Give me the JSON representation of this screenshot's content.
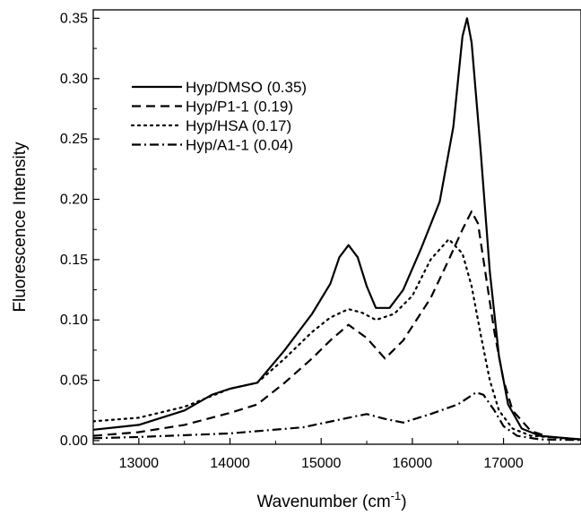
{
  "chart_data": {
    "type": "line",
    "title": "",
    "xlabel": "Wavenumber (cm",
    "xlabel_sup": "-1",
    "xlabel_close": ")",
    "ylabel": "Fluorescence Intensity",
    "xlim": [
      12500,
      17850
    ],
    "ylim": [
      -0.003,
      0.357
    ],
    "x_ticks": [
      13000,
      14000,
      15000,
      16000,
      17000
    ],
    "x_tick_labels": [
      "13000",
      "14000",
      "15000",
      "16000",
      "17000"
    ],
    "y_ticks": [
      0.0,
      0.05,
      0.1,
      0.15,
      0.2,
      0.25,
      0.3,
      0.35
    ],
    "y_tick_labels": [
      "0.00",
      "0.05",
      "0.10",
      "0.15",
      "0.20",
      "0.25",
      "0.30",
      "0.35"
    ],
    "grid": false,
    "legend_position": "upper-left",
    "series": [
      {
        "name": "Hyp/DMSO (0.35)",
        "style": "solid",
        "points": [
          [
            12500,
            0.009
          ],
          [
            13000,
            0.013
          ],
          [
            13500,
            0.025
          ],
          [
            13800,
            0.038
          ],
          [
            14000,
            0.043
          ],
          [
            14300,
            0.048
          ],
          [
            14600,
            0.075
          ],
          [
            14900,
            0.105
          ],
          [
            15100,
            0.13
          ],
          [
            15200,
            0.152
          ],
          [
            15300,
            0.162
          ],
          [
            15400,
            0.152
          ],
          [
            15500,
            0.128
          ],
          [
            15600,
            0.11
          ],
          [
            15750,
            0.11
          ],
          [
            15900,
            0.125
          ],
          [
            16100,
            0.16
          ],
          [
            16300,
            0.198
          ],
          [
            16450,
            0.26
          ],
          [
            16550,
            0.335
          ],
          [
            16600,
            0.35
          ],
          [
            16650,
            0.33
          ],
          [
            16750,
            0.24
          ],
          [
            16850,
            0.14
          ],
          [
            16950,
            0.07
          ],
          [
            17050,
            0.03
          ],
          [
            17200,
            0.01
          ],
          [
            17400,
            0.004
          ],
          [
            17850,
            0.001
          ]
        ]
      },
      {
        "name": "Hyp/P1-1 (0.19)",
        "style": "dashed",
        "points": [
          [
            12500,
            0.004
          ],
          [
            13000,
            0.007
          ],
          [
            13500,
            0.013
          ],
          [
            14000,
            0.023
          ],
          [
            14300,
            0.03
          ],
          [
            14600,
            0.048
          ],
          [
            14900,
            0.068
          ],
          [
            15100,
            0.083
          ],
          [
            15300,
            0.096
          ],
          [
            15500,
            0.085
          ],
          [
            15700,
            0.068
          ],
          [
            15900,
            0.083
          ],
          [
            16200,
            0.118
          ],
          [
            16400,
            0.15
          ],
          [
            16550,
            0.175
          ],
          [
            16650,
            0.19
          ],
          [
            16720,
            0.18
          ],
          [
            16800,
            0.14
          ],
          [
            16900,
            0.09
          ],
          [
            17000,
            0.05
          ],
          [
            17100,
            0.025
          ],
          [
            17300,
            0.008
          ],
          [
            17500,
            0.003
          ],
          [
            17850,
            0.001
          ]
        ]
      },
      {
        "name": "Hyp/HSA  (0.17)",
        "style": "dotted",
        "points": [
          [
            12500,
            0.016
          ],
          [
            13000,
            0.019
          ],
          [
            13500,
            0.028
          ],
          [
            13800,
            0.037
          ],
          [
            14000,
            0.043
          ],
          [
            14300,
            0.048
          ],
          [
            14600,
            0.068
          ],
          [
            14900,
            0.09
          ],
          [
            15100,
            0.102
          ],
          [
            15300,
            0.109
          ],
          [
            15450,
            0.106
          ],
          [
            15600,
            0.1
          ],
          [
            15800,
            0.105
          ],
          [
            16000,
            0.12
          ],
          [
            16200,
            0.15
          ],
          [
            16400,
            0.167
          ],
          [
            16550,
            0.155
          ],
          [
            16650,
            0.128
          ],
          [
            16750,
            0.088
          ],
          [
            16850,
            0.05
          ],
          [
            16950,
            0.025
          ],
          [
            17100,
            0.01
          ],
          [
            17300,
            0.004
          ],
          [
            17850,
            0.001
          ]
        ]
      },
      {
        "name": "Hyp/A1-1 (0.04)",
        "style": "dashdot",
        "points": [
          [
            12500,
            0.002
          ],
          [
            13000,
            0.003
          ],
          [
            14000,
            0.006
          ],
          [
            14800,
            0.011
          ],
          [
            15300,
            0.019
          ],
          [
            15500,
            0.022
          ],
          [
            15700,
            0.018
          ],
          [
            15900,
            0.015
          ],
          [
            16200,
            0.022
          ],
          [
            16500,
            0.03
          ],
          [
            16700,
            0.04
          ],
          [
            16780,
            0.038
          ],
          [
            16900,
            0.025
          ],
          [
            17000,
            0.012
          ],
          [
            17150,
            0.004
          ],
          [
            17400,
            0.001
          ],
          [
            17850,
            0.0005
          ]
        ]
      }
    ]
  }
}
